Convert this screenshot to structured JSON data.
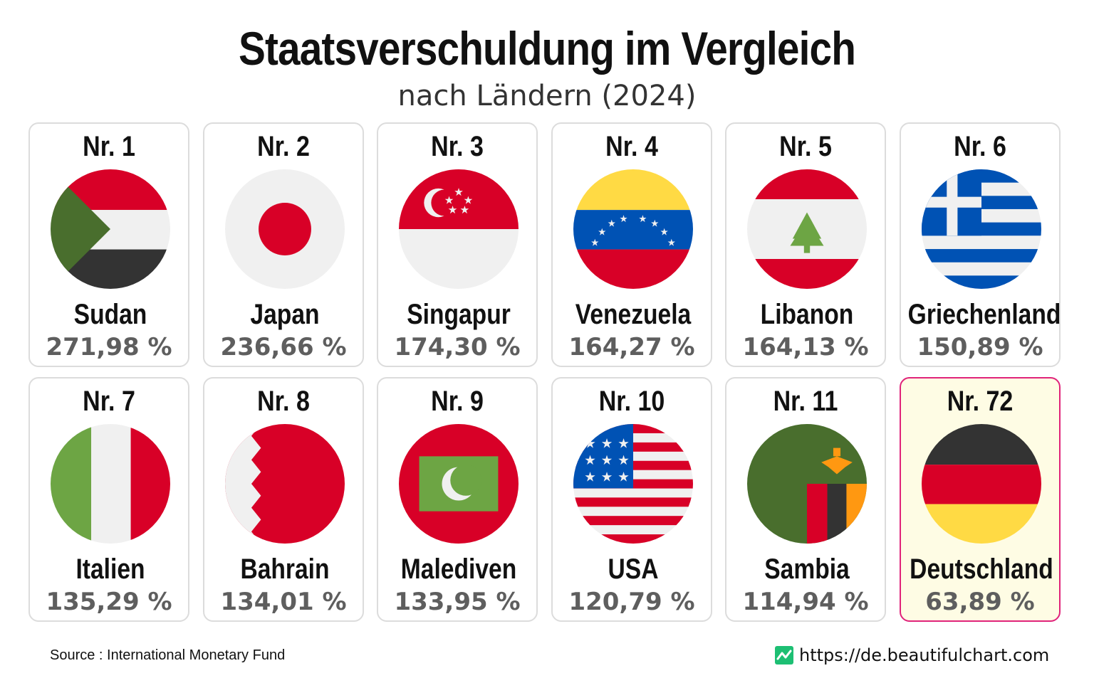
{
  "title": "Staatsverschuldung im Vergleich",
  "subtitle": "nach Ländern (2024)",
  "source": "Source : International Monetary Fund",
  "website": "https://de.beautifulchart.com",
  "colors": {
    "highlight_border": "#e0237a",
    "highlight_bg": "#fefce4",
    "logo": "#1dbf73"
  },
  "chart_data": {
    "type": "table",
    "columns": [
      "rank",
      "country",
      "value"
    ],
    "rows": [
      {
        "rank": "Nr. 1",
        "country": "Sudan",
        "value": "271,98 %",
        "flag": "sudan-flag-icon"
      },
      {
        "rank": "Nr. 2",
        "country": "Japan",
        "value": "236,66 %",
        "flag": "japan-flag-icon"
      },
      {
        "rank": "Nr. 3",
        "country": "Singapur",
        "value": "174,30 %",
        "flag": "singapore-flag-icon"
      },
      {
        "rank": "Nr. 4",
        "country": "Venezuela",
        "value": "164,27 %",
        "flag": "venezuela-flag-icon"
      },
      {
        "rank": "Nr. 5",
        "country": "Libanon",
        "value": "164,13 %",
        "flag": "lebanon-flag-icon"
      },
      {
        "rank": "Nr. 6",
        "country": "Griechenland",
        "value": "150,89 %",
        "flag": "greece-flag-icon"
      },
      {
        "rank": "Nr. 7",
        "country": "Italien",
        "value": "135,29 %",
        "flag": "italy-flag-icon"
      },
      {
        "rank": "Nr. 8",
        "country": "Bahrain",
        "value": "134,01 %",
        "flag": "bahrain-flag-icon"
      },
      {
        "rank": "Nr. 9",
        "country": "Malediven",
        "value": "133,95 %",
        "flag": "maldives-flag-icon"
      },
      {
        "rank": "Nr. 10",
        "country": "USA",
        "value": "120,79 %",
        "flag": "usa-flag-icon"
      },
      {
        "rank": "Nr. 11",
        "country": "Sambia",
        "value": "114,94 %",
        "flag": "zambia-flag-icon"
      },
      {
        "rank": "Nr. 72",
        "country": "Deutschland",
        "value": "63,89 %",
        "flag": "germany-flag-icon",
        "highlight": true
      }
    ]
  }
}
